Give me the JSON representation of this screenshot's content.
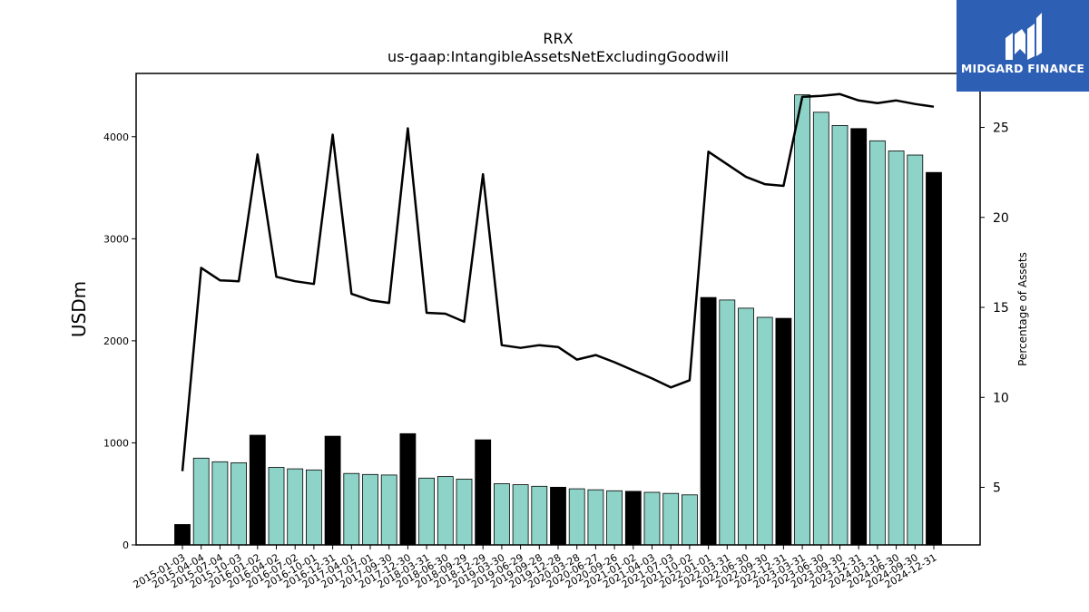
{
  "logo": {
    "text": "MIDGARD FINANCE",
    "color": "#2d5fb5"
  },
  "chart_data": {
    "type": "bar",
    "title": "RRX",
    "subtitle": "us-gaap:IntangibleAssetsNetExcludingGoodwill",
    "ylabel": "USDm",
    "y2label": "Percentage of Assets",
    "ylim": [
      0,
      4620
    ],
    "y2lim": [
      1.8,
      28.0
    ],
    "yticks": [
      0,
      1000,
      2000,
      3000,
      4000
    ],
    "y2ticks": [
      5,
      10,
      15,
      20,
      25
    ],
    "colors": {
      "annual": "#000000",
      "quarterly": "#8dd3c7",
      "line": "#000000"
    },
    "categories": [
      "2015-01-03",
      "2015-04-04",
      "2015-07-04",
      "2015-10-03",
      "2016-01-02",
      "2016-04-02",
      "2016-07-02",
      "2016-10-01",
      "2016-12-31",
      "2017-04-01",
      "2017-07-01",
      "2017-09-30",
      "2017-12-30",
      "2018-03-31",
      "2018-06-30",
      "2018-09-29",
      "2018-12-29",
      "2019-03-30",
      "2019-06-29",
      "2019-09-28",
      "2019-12-28",
      "2020-03-28",
      "2020-06-27",
      "2020-09-26",
      "2021-01-02",
      "2021-04-03",
      "2021-07-03",
      "2021-10-02",
      "2022-01-01",
      "2022-03-31",
      "2022-06-30",
      "2022-09-30",
      "2022-12-31",
      "2023-03-31",
      "2023-06-30",
      "2023-09-30",
      "2023-12-31",
      "2024-03-31",
      "2024-06-30",
      "2024-09-30",
      "2024-12-31"
    ],
    "series": [
      {
        "kind": "bar",
        "values": [
          200,
          850,
          815,
          805,
          1075,
          760,
          745,
          735,
          1065,
          700,
          690,
          685,
          1090,
          655,
          670,
          645,
          1030,
          600,
          590,
          575,
          565,
          550,
          540,
          530,
          525,
          515,
          505,
          490,
          2425,
          2400,
          2320,
          2230,
          2220,
          4410,
          4240,
          4110,
          4080,
          3960,
          3860,
          3820,
          3650
        ],
        "annual": [
          true,
          false,
          false,
          false,
          true,
          false,
          false,
          false,
          true,
          false,
          false,
          false,
          true,
          false,
          false,
          false,
          true,
          false,
          false,
          false,
          true,
          false,
          false,
          false,
          true,
          false,
          false,
          false,
          true,
          false,
          false,
          false,
          true,
          false,
          false,
          false,
          true,
          false,
          false,
          false,
          true
        ]
      },
      {
        "kind": "line",
        "axis": "right",
        "values": [
          5.9,
          17.2,
          16.5,
          16.45,
          23.5,
          16.7,
          16.45,
          16.3,
          24.6,
          15.75,
          15.4,
          15.25,
          24.95,
          14.7,
          14.65,
          14.2,
          22.4,
          12.9,
          12.75,
          12.9,
          12.8,
          12.1,
          12.35,
          11.95,
          11.5,
          11.05,
          10.55,
          10.95,
          23.65,
          22.95,
          22.25,
          21.85,
          21.75,
          26.7,
          26.75,
          26.85,
          26.5,
          26.35,
          26.5,
          26.3,
          26.15
        ]
      }
    ]
  }
}
